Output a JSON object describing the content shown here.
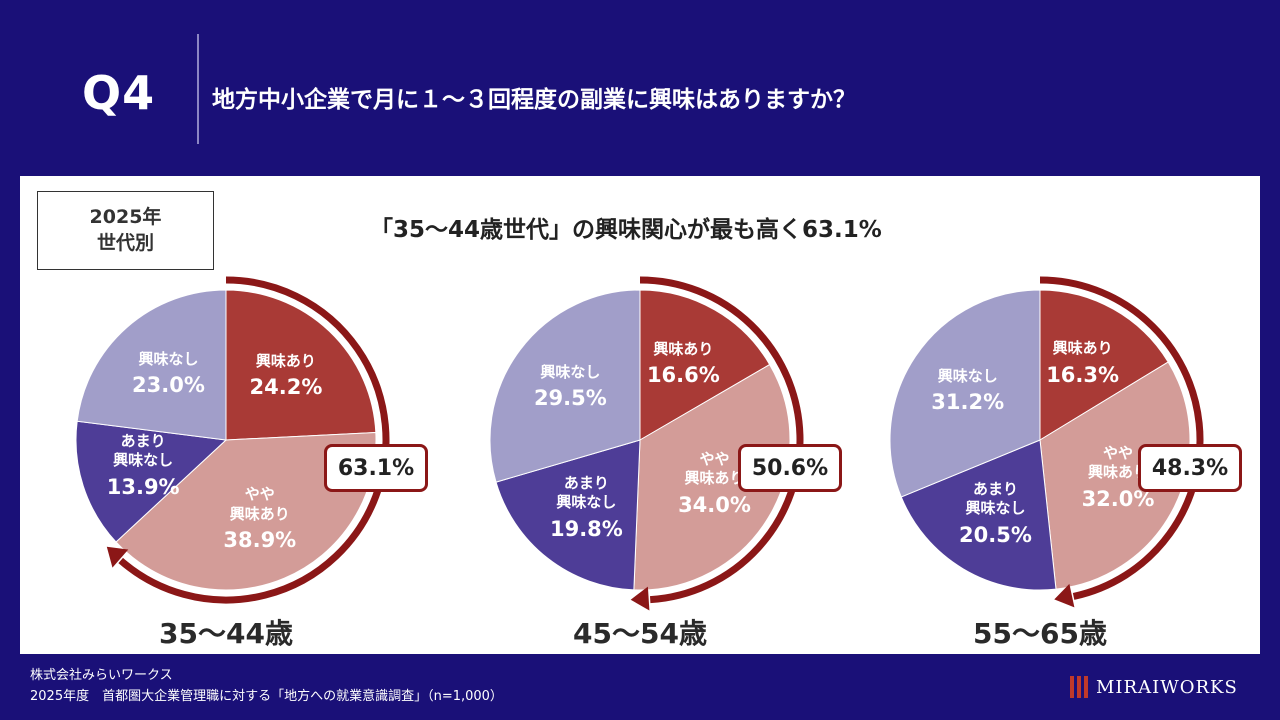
{
  "header": {
    "q_label": "Q4",
    "question": "地方中小企業で月に１～３回程度の副業に興味はありますか？"
  },
  "panel": {
    "category_line1": "2025年",
    "category_line2": "世代別",
    "headline": "「35～44歳世代」の興味関心が最も高く63.1%"
  },
  "chart_data": [
    {
      "type": "pie",
      "title": "35～44歳",
      "slices": [
        {
          "label": "興味あり",
          "value": 24.2,
          "value_text": "24.2%",
          "color": "#a93a36"
        },
        {
          "label": "やや\n興味あり",
          "value": 38.9,
          "value_text": "38.9%",
          "color": "#d39c98"
        },
        {
          "label": "あまり\n興味なし",
          "value": 13.9,
          "value_text": "13.9%",
          "color": "#4e3d97"
        },
        {
          "label": "興味なし",
          "value": 23.0,
          "value_text": "23.0%",
          "color": "#a19ec9"
        }
      ],
      "total_interest": 63.1,
      "total_text": "63.1%"
    },
    {
      "type": "pie",
      "title": "45～54歳",
      "slices": [
        {
          "label": "興味あり",
          "value": 16.6,
          "value_text": "16.6%",
          "color": "#a93a36"
        },
        {
          "label": "やや\n興味あり",
          "value": 34.0,
          "value_text": "34.0%",
          "color": "#d39c98"
        },
        {
          "label": "あまり\n興味なし",
          "value": 19.8,
          "value_text": "19.8%",
          "color": "#4e3d97"
        },
        {
          "label": "興味なし",
          "value": 29.5,
          "value_text": "29.5%",
          "color": "#a19ec9"
        }
      ],
      "total_interest": 50.6,
      "total_text": "50.6%"
    },
    {
      "type": "pie",
      "title": "55～65歳",
      "slices": [
        {
          "label": "興味あり",
          "value": 16.3,
          "value_text": "16.3%",
          "color": "#a93a36"
        },
        {
          "label": "やや\n興味あり",
          "value": 32.0,
          "value_text": "32.0%",
          "color": "#d39c98"
        },
        {
          "label": "あまり\n興味なし",
          "value": 20.5,
          "value_text": "20.5%",
          "color": "#4e3d97"
        },
        {
          "label": "興味なし",
          "value": 31.2,
          "value_text": "31.2%",
          "color": "#a19ec9"
        }
      ],
      "total_interest": 48.3,
      "total_text": "48.3%"
    }
  ],
  "colors": {
    "background": "#1a1078",
    "arrow": "#8b1717"
  },
  "footer": {
    "company": "株式会社みらいワークス",
    "source": "2025年度　首都圏大企業管理職に対する「地方への就業意識調査」（n=1,000）"
  },
  "logo": {
    "text": "MIRAIWORKS"
  }
}
